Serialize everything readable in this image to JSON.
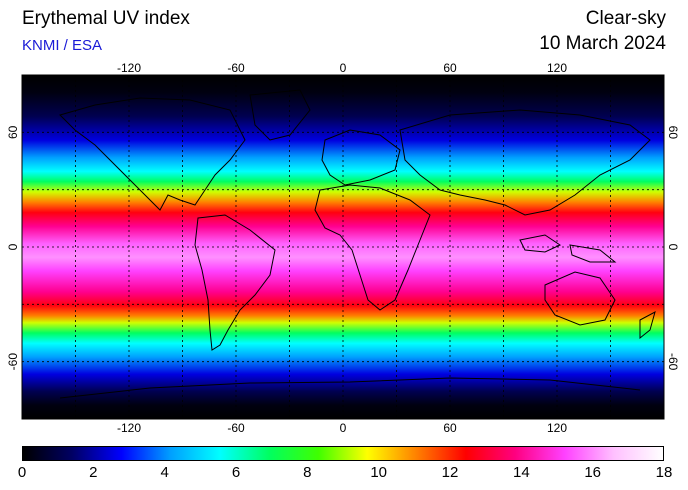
{
  "header": {
    "title": "Erythemal UV index",
    "credit": "KNMI / ESA",
    "mode": "Clear-sky",
    "date": "10 March 2024"
  },
  "map": {
    "longitude_ticks": [
      "-120",
      "-60",
      "0",
      "60",
      "120"
    ],
    "latitude_ticks": [
      "60",
      "0",
      "-60"
    ],
    "longitude_values": [
      -120,
      -60,
      0,
      60,
      120
    ],
    "latitude_values": [
      60,
      0,
      -60
    ],
    "gridline_latitudes": [
      60,
      30,
      0,
      -30,
      -60
    ],
    "gridline_longitudes": [
      -150,
      -120,
      -90,
      -60,
      -30,
      0,
      30,
      60,
      90,
      120,
      150
    ],
    "lon_range": [
      -180,
      180
    ],
    "lat_range": [
      -90,
      90
    ]
  },
  "colorbar": {
    "labels": [
      "0",
      "2",
      "4",
      "6",
      "8",
      "10",
      "12",
      "14",
      "16",
      "18"
    ],
    "values": [
      0,
      2,
      4,
      6,
      8,
      10,
      12,
      14,
      16,
      18
    ],
    "colors": [
      "#000000",
      "#000064",
      "#0000ff",
      "#00a0ff",
      "#00ffff",
      "#00ff60",
      "#40ff00",
      "#ffff00",
      "#ff8000",
      "#ff0000",
      "#ff0080",
      "#ff40ff",
      "#ffc0ff",
      "#ffffff"
    ]
  }
}
